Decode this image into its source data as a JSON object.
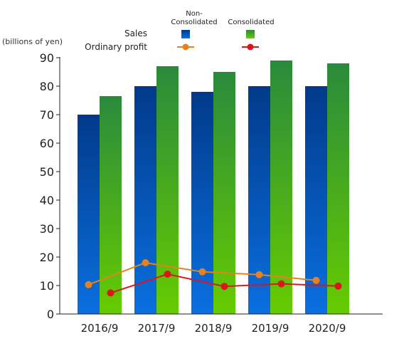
{
  "chart_data": {
    "type": "bar",
    "units_label": "(billions of yen)",
    "categories": [
      "2016/9",
      "2017/9",
      "2018/9",
      "2019/9",
      "2020/9"
    ],
    "ylim": [
      0,
      90
    ],
    "yticks": [
      0,
      10,
      20,
      30,
      40,
      50,
      60,
      70,
      80,
      90
    ],
    "grid": false,
    "legend": {
      "placement": "top",
      "column_headers": [
        "Non-\nConsolidated",
        "Consolidated"
      ],
      "row_labels": [
        "Sales",
        "Ordinary profit"
      ]
    },
    "series": [
      {
        "name": "Sales Non-Consolidated",
        "kind": "bar",
        "values": [
          70,
          80,
          78,
          80,
          80
        ],
        "color_top": "#013a8a",
        "color_bottom": "#0a6fe0"
      },
      {
        "name": "Sales Consolidated",
        "kind": "bar",
        "values": [
          76.5,
          87,
          85,
          89,
          88
        ],
        "color_top": "#2a8a3c",
        "color_bottom": "#66cc00"
      },
      {
        "name": "Ordinary profit Non-Consolidated",
        "kind": "line",
        "values": [
          10.3,
          18,
          14.8,
          13.8,
          11.8
        ],
        "color": "#e8801e"
      },
      {
        "name": "Ordinary profit Consolidated",
        "kind": "line",
        "values": [
          7.4,
          14,
          9.7,
          10.6,
          9.8
        ],
        "color": "#e0141c"
      }
    ]
  }
}
